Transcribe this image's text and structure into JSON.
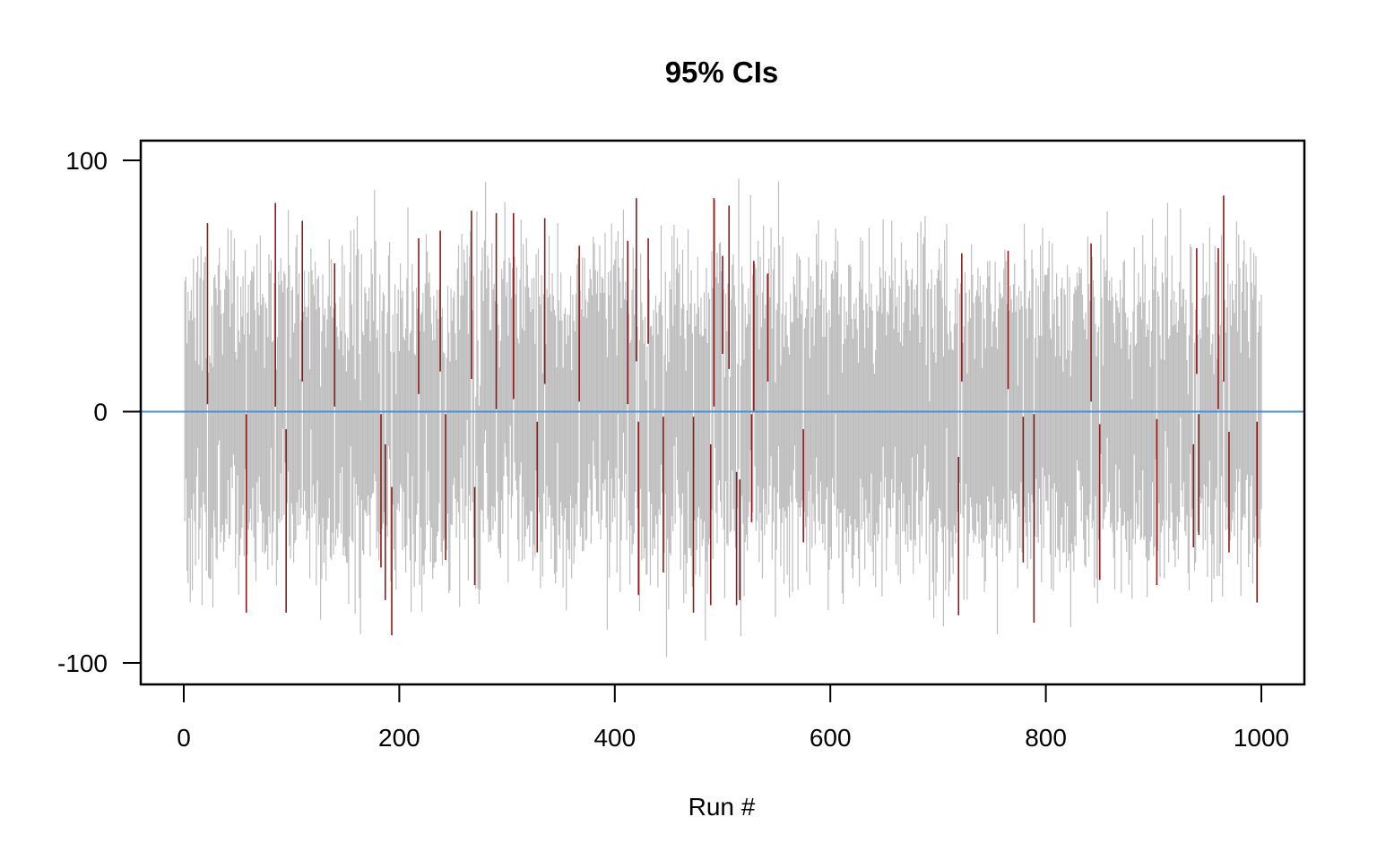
{
  "chart_data": {
    "type": "interval",
    "title": "95% CIs",
    "xlabel": "Run #",
    "ylabel": "",
    "xlim": [
      0,
      1000
    ],
    "ylim": [
      -100,
      100
    ],
    "x_ticks": [
      0,
      200,
      400,
      600,
      800,
      1000
    ],
    "y_ticks": [
      -100,
      0,
      100
    ],
    "reference_line": {
      "y": 0,
      "color": "#4a90d9"
    },
    "colors": {
      "covers_zero": "#bebebe",
      "misses_zero": "#8b1a1a",
      "axis": "#000000"
    },
    "runs": 1000,
    "typical_interval_half_width": 45,
    "misses_zero_intervals": [
      {
        "run": 22,
        "lower": 3,
        "upper": 75
      },
      {
        "run": 58,
        "lower": -80,
        "upper": -1
      },
      {
        "run": 85,
        "lower": 2,
        "upper": 83
      },
      {
        "run": 95,
        "lower": -80,
        "upper": -7
      },
      {
        "run": 110,
        "lower": 12,
        "upper": 76
      },
      {
        "run": 140,
        "lower": 2,
        "upper": 59
      },
      {
        "run": 183,
        "lower": -62,
        "upper": -1
      },
      {
        "run": 187,
        "lower": -75,
        "upper": -13
      },
      {
        "run": 193,
        "lower": -89,
        "upper": -30
      },
      {
        "run": 218,
        "lower": 7,
        "upper": 69
      },
      {
        "run": 238,
        "lower": 16,
        "upper": 72
      },
      {
        "run": 243,
        "lower": -59,
        "upper": -1
      },
      {
        "run": 267,
        "lower": 13,
        "upper": 80
      },
      {
        "run": 270,
        "lower": -69,
        "upper": -30
      },
      {
        "run": 290,
        "lower": 1,
        "upper": 79
      },
      {
        "run": 306,
        "lower": 5,
        "upper": 79
      },
      {
        "run": 328,
        "lower": -56,
        "upper": -4
      },
      {
        "run": 335,
        "lower": 11,
        "upper": 77
      },
      {
        "run": 367,
        "lower": 4,
        "upper": 66
      },
      {
        "run": 412,
        "lower": 3,
        "upper": 68
      },
      {
        "run": 420,
        "lower": 20,
        "upper": 85
      },
      {
        "run": 422,
        "lower": -73,
        "upper": -4
      },
      {
        "run": 431,
        "lower": 27,
        "upper": 69
      },
      {
        "run": 445,
        "lower": -64,
        "upper": -2
      },
      {
        "run": 473,
        "lower": -80,
        "upper": -2
      },
      {
        "run": 489,
        "lower": -77,
        "upper": -13
      },
      {
        "run": 492,
        "lower": 2,
        "upper": 85
      },
      {
        "run": 500,
        "lower": 23,
        "upper": 62
      },
      {
        "run": 506,
        "lower": 17,
        "upper": 82
      },
      {
        "run": 513,
        "lower": -77,
        "upper": -24
      },
      {
        "run": 516,
        "lower": -75,
        "upper": -27
      },
      {
        "run": 527,
        "lower": -44,
        "upper": -1
      },
      {
        "run": 529,
        "lower": 0,
        "upper": 60
      },
      {
        "run": 542,
        "lower": 12,
        "upper": 55
      },
      {
        "run": 575,
        "lower": -52,
        "upper": -7
      },
      {
        "run": 719,
        "lower": -81,
        "upper": -18
      },
      {
        "run": 722,
        "lower": 12,
        "upper": 63
      },
      {
        "run": 765,
        "lower": 9,
        "upper": 64
      },
      {
        "run": 779,
        "lower": -60,
        "upper": -2
      },
      {
        "run": 789,
        "lower": -84,
        "upper": -1
      },
      {
        "run": 842,
        "lower": 4,
        "upper": 67
      },
      {
        "run": 850,
        "lower": -67,
        "upper": -5
      },
      {
        "run": 903,
        "lower": -69,
        "upper": -3
      },
      {
        "run": 937,
        "lower": -54,
        "upper": -13
      },
      {
        "run": 940,
        "lower": 15,
        "upper": 65
      },
      {
        "run": 942,
        "lower": -49,
        "upper": -1
      },
      {
        "run": 960,
        "lower": 1,
        "upper": 65
      },
      {
        "run": 965,
        "lower": 12,
        "upper": 86
      },
      {
        "run": 970,
        "lower": -56,
        "upper": -8
      },
      {
        "run": 996,
        "lower": -76,
        "upper": -4
      }
    ]
  }
}
